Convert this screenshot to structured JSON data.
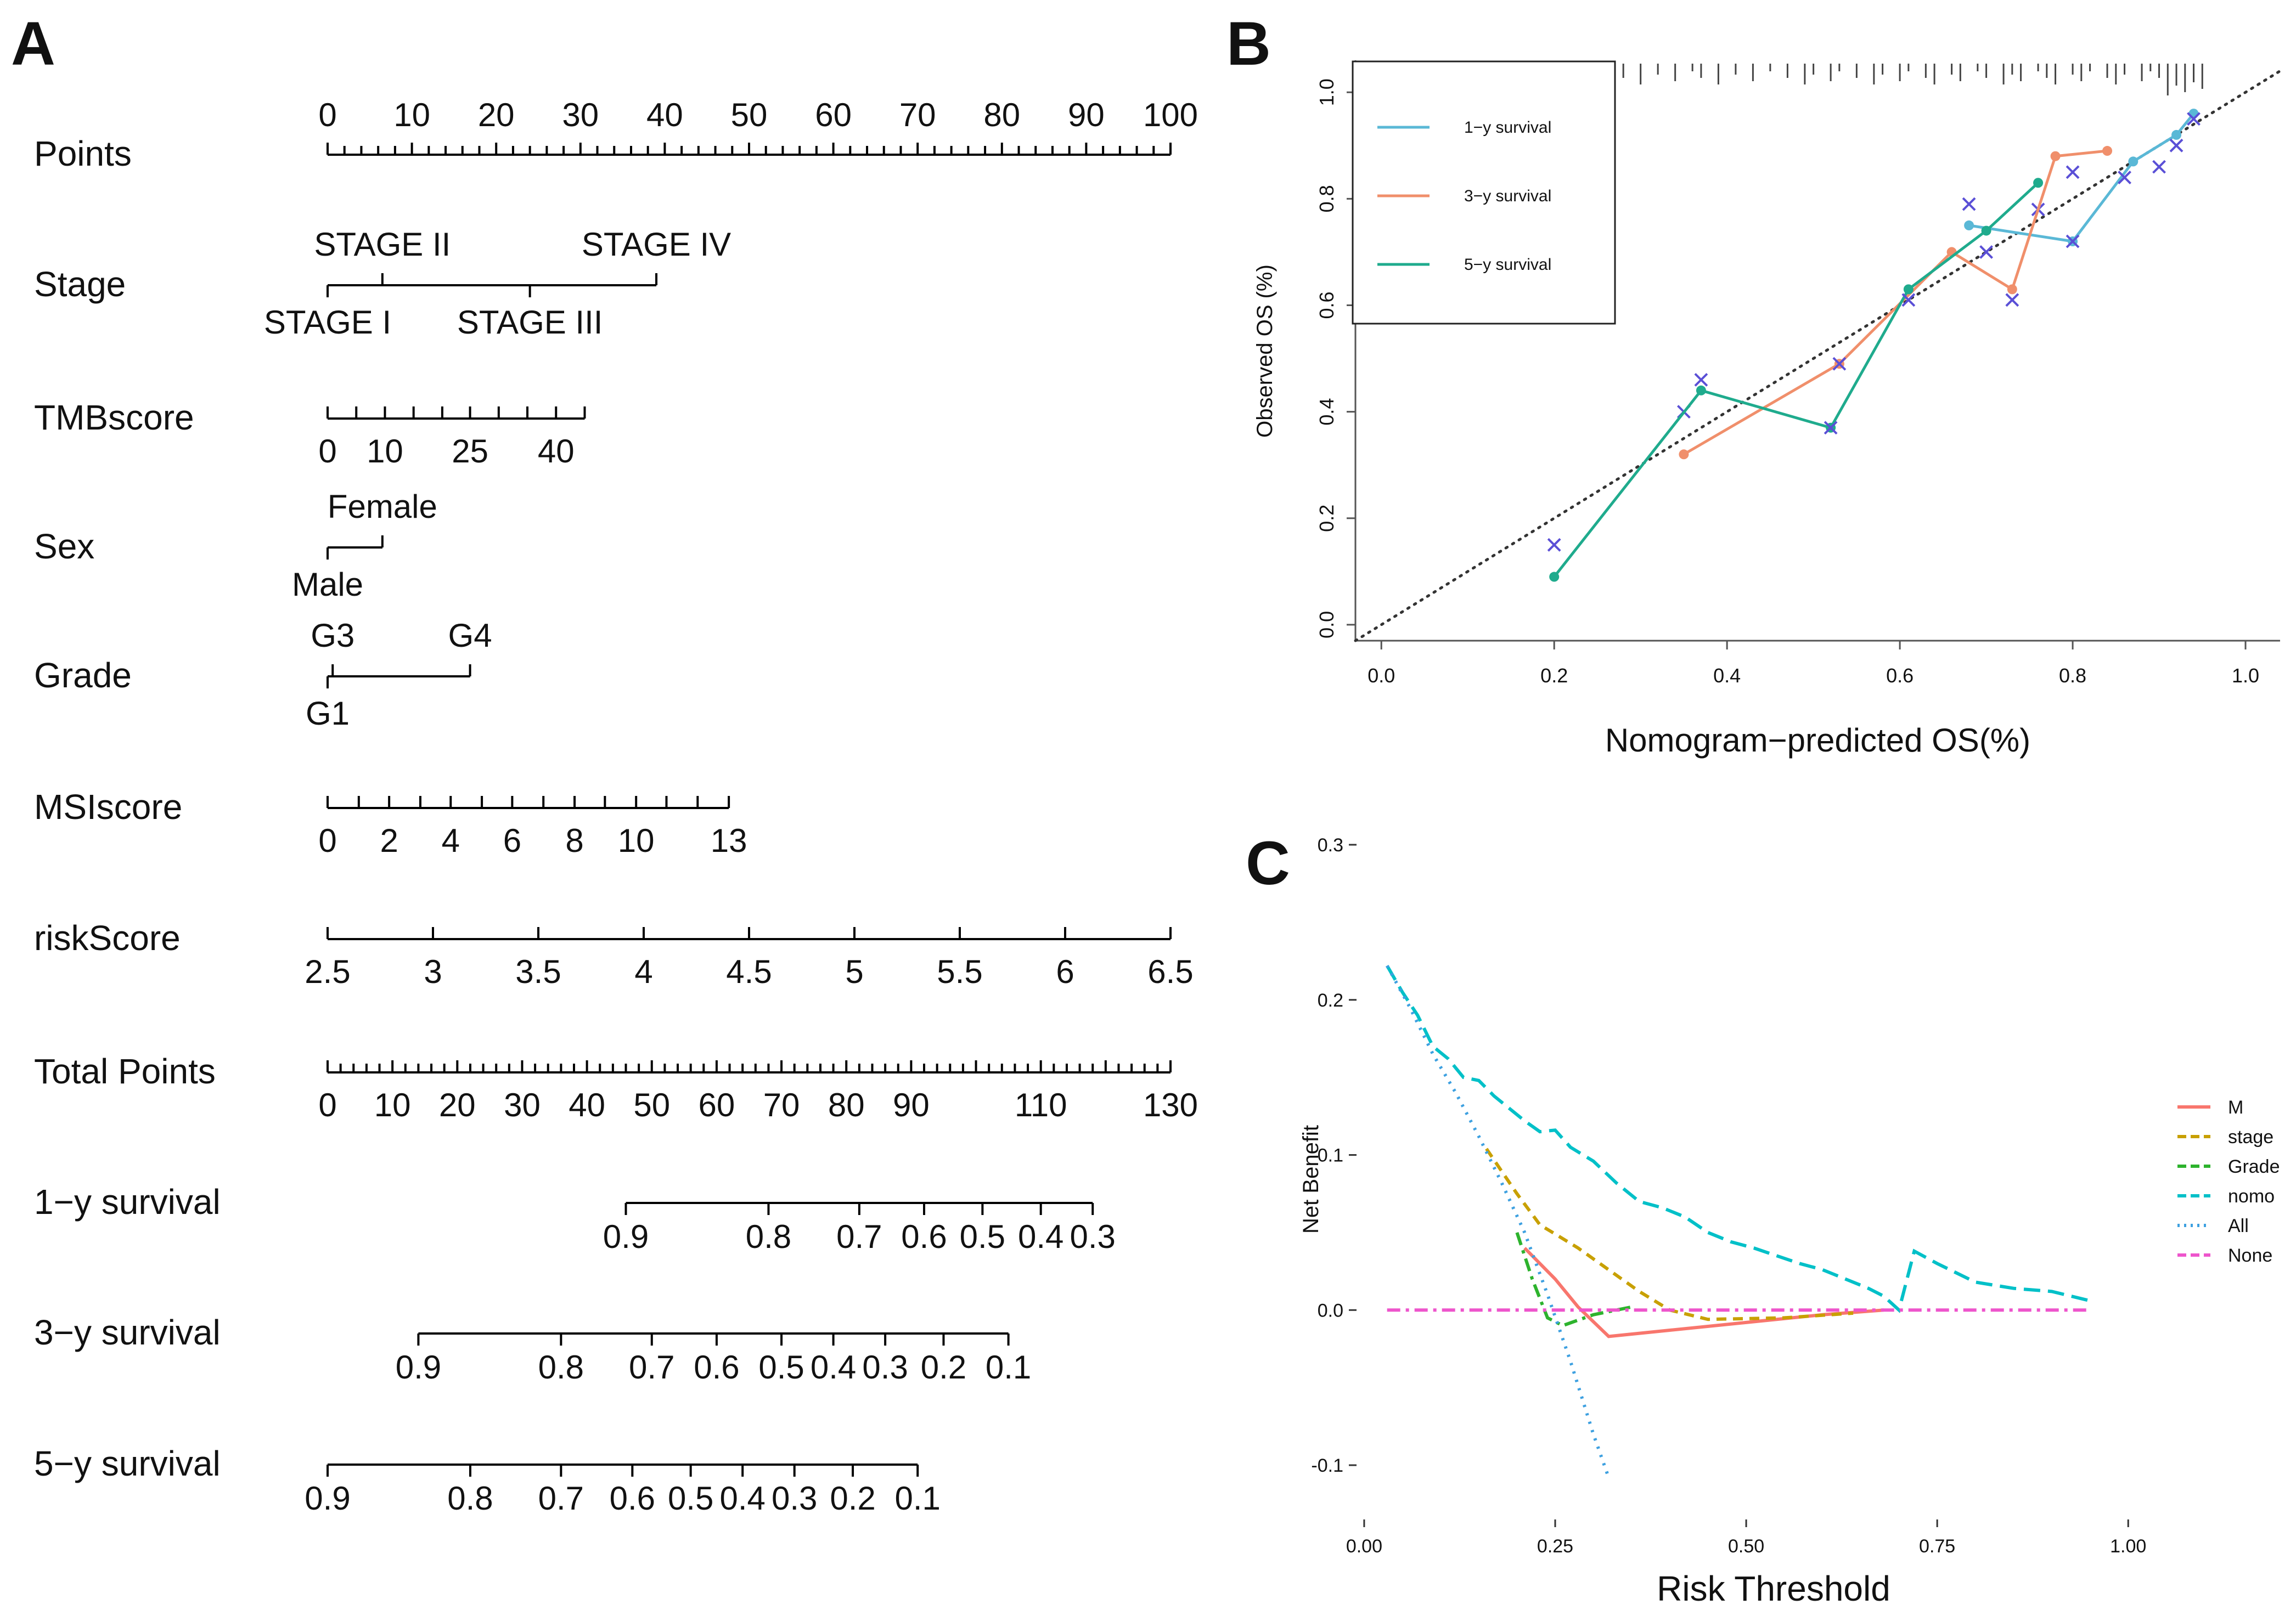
{
  "panels": {
    "a": "A",
    "b": "B",
    "c": "C"
  },
  "chart_data": [
    {
      "type": "nomogram",
      "panel": "A",
      "rows": [
        {
          "key": "points",
          "label": "Points",
          "min": 0,
          "max": 100,
          "minor": 2,
          "ticks": [
            0,
            10,
            20,
            30,
            40,
            50,
            60,
            70,
            80,
            90,
            100
          ],
          "labels_above": true
        },
        {
          "key": "stage",
          "label": "Stage",
          "categorical": true,
          "min": 0,
          "max": 39,
          "levels": [
            {
              "name": "STAGE I",
              "pos": 0,
              "side": "below"
            },
            {
              "name": "STAGE II",
              "pos": 6.5,
              "side": "above"
            },
            {
              "name": "STAGE III",
              "pos": 24,
              "side": "below"
            },
            {
              "name": "STAGE IV",
              "pos": 39,
              "side": "above"
            }
          ]
        },
        {
          "key": "tmb",
          "label": "TMBscore",
          "min": 0,
          "max": 30.5,
          "tick_points": [
            0,
            3.4,
            6.8,
            10.2,
            13.6,
            16.9,
            20.3,
            23.7,
            27.1,
            30.5
          ],
          "labels": [
            {
              "text": "0",
              "pos": 0
            },
            {
              "text": "10",
              "pos": 6.8
            },
            {
              "text": "25",
              "pos": 16.9
            },
            {
              "text": "40",
              "pos": 27.1
            }
          ]
        },
        {
          "key": "sex",
          "label": "Sex",
          "categorical": true,
          "min": 0,
          "max": 6.5,
          "levels": [
            {
              "name": "Male",
              "pos": 0,
              "side": "below"
            },
            {
              "name": "Female",
              "pos": 6.5,
              "side": "above"
            }
          ]
        },
        {
          "key": "grade",
          "label": "Grade",
          "categorical": true,
          "min": 0,
          "max": 16.9,
          "levels": [
            {
              "name": "G1",
              "pos": 0,
              "side": "below"
            },
            {
              "name": "G3",
              "pos": 0.6,
              "side": "above"
            },
            {
              "name": "G4",
              "pos": 16.9,
              "side": "above"
            }
          ]
        },
        {
          "key": "msi",
          "label": "MSIscore",
          "min": 0,
          "max": 47.6,
          "tick_points": [
            0,
            3.7,
            7.3,
            11,
            14.6,
            18.3,
            21.9,
            25.6,
            29.3,
            32.9,
            36.6,
            40.2,
            43.9,
            47.6
          ],
          "labels": [
            {
              "text": "0",
              "pos": 0
            },
            {
              "text": "2",
              "pos": 7.3
            },
            {
              "text": "4",
              "pos": 14.6
            },
            {
              "text": "6",
              "pos": 21.9
            },
            {
              "text": "8",
              "pos": 29.3
            },
            {
              "text": "10",
              "pos": 36.6
            },
            {
              "text": "13",
              "pos": 47.6
            }
          ]
        },
        {
          "key": "risk",
          "label": "riskScore",
          "value_min": 2.5,
          "value_max": 6.5,
          "min": 0,
          "max": 100,
          "ticks": [
            2.5,
            3,
            3.5,
            4,
            4.5,
            5,
            5.5,
            6,
            6.5
          ],
          "tick_labels": [
            "2.5",
            "3",
            "3.5",
            "4",
            "4.5",
            "5",
            "5.5",
            "6",
            "6.5"
          ]
        },
        {
          "key": "total",
          "label": "Total Points",
          "value_min": 0,
          "value_max": 130,
          "min": 0,
          "max": 100,
          "minor": 2,
          "ticks": [
            0,
            10,
            20,
            30,
            40,
            50,
            60,
            70,
            80,
            90,
            110,
            130
          ]
        },
        {
          "key": "surv1",
          "label": "1−y survival",
          "line_total": [
            46,
            118
          ],
          "labels": [
            {
              "text": "0.9",
              "total": 46
            },
            {
              "text": "0.8",
              "total": 68
            },
            {
              "text": "0.7",
              "total": 82
            },
            {
              "text": "0.6",
              "total": 92
            },
            {
              "text": "0.5",
              "total": 101
            },
            {
              "text": "0.4",
              "total": 110
            },
            {
              "text": "0.3",
              "total": 118
            }
          ]
        },
        {
          "key": "surv3",
          "label": "3−y survival",
          "line_total": [
            14,
            105
          ],
          "labels": [
            {
              "text": "0.9",
              "total": 14
            },
            {
              "text": "0.8",
              "total": 36
            },
            {
              "text": "0.7",
              "total": 50
            },
            {
              "text": "0.6",
              "total": 60
            },
            {
              "text": "0.5",
              "total": 70
            },
            {
              "text": "0.4",
              "total": 78
            },
            {
              "text": "0.3",
              "total": 86
            },
            {
              "text": "0.2",
              "total": 95
            },
            {
              "text": "0.1",
              "total": 105
            }
          ]
        },
        {
          "key": "surv5",
          "label": "5−y survival",
          "line_total": [
            0,
            91
          ],
          "labels": [
            {
              "text": "0.9",
              "total": 0
            },
            {
              "text": "0.8",
              "total": 22
            },
            {
              "text": "0.7",
              "total": 36
            },
            {
              "text": "0.6",
              "total": 47
            },
            {
              "text": "0.5",
              "total": 56
            },
            {
              "text": "0.4",
              "total": 64
            },
            {
              "text": "0.3",
              "total": 72
            },
            {
              "text": "0.2",
              "total": 81
            },
            {
              "text": "0.1",
              "total": 91
            }
          ]
        }
      ]
    },
    {
      "type": "line",
      "panel": "B",
      "title": "",
      "xlabel": "Nomogram−predicted OS(%)",
      "ylabel": "Observed OS (%)",
      "xlim": [
        -0.03,
        1.04
      ],
      "ylim": [
        -0.03,
        1.06
      ],
      "xticks": [
        0,
        0.2,
        0.4,
        0.6,
        0.8,
        1
      ],
      "xtick_labels": [
        "0.0",
        "0.2",
        "0.4",
        "0.6",
        "0.8",
        "1.0"
      ],
      "yticks": [
        0,
        0.2,
        0.4,
        0.6,
        0.8,
        1
      ],
      "ytick_labels": [
        "0.0",
        "0.2",
        "0.4",
        "0.6",
        "0.8",
        "1.0"
      ],
      "reference": "diagonal",
      "legend": [
        "1−y survival",
        "3−y survival",
        "5−y survival"
      ],
      "series": [
        {
          "name": "1−y survival",
          "color": "#5ab8d6",
          "points": [
            [
              0.68,
              0.75
            ],
            [
              0.8,
              0.72
            ],
            [
              0.87,
              0.87
            ],
            [
              0.92,
              0.92
            ],
            [
              0.94,
              0.96
            ]
          ],
          "crosses": [
            [
              0.68,
              0.79
            ],
            [
              0.76,
              0.78
            ],
            [
              0.8,
              0.72
            ],
            [
              0.86,
              0.84
            ],
            [
              0.92,
              0.9
            ],
            [
              0.94,
              0.95
            ]
          ]
        },
        {
          "name": "3−y survival",
          "color": "#f08f6b",
          "points": [
            [
              0.35,
              0.32
            ],
            [
              0.53,
              0.49
            ],
            [
              0.66,
              0.7
            ],
            [
              0.73,
              0.63
            ],
            [
              0.78,
              0.88
            ],
            [
              0.84,
              0.89
            ]
          ],
          "crosses": [
            [
              0.35,
              0.4
            ],
            [
              0.53,
              0.49
            ],
            [
              0.73,
              0.61
            ],
            [
              0.8,
              0.85
            ],
            [
              0.9,
              0.86
            ]
          ]
        },
        {
          "name": "5−y survival",
          "color": "#1fab8d",
          "points": [
            [
              0.2,
              0.09
            ],
            [
              0.37,
              0.44
            ],
            [
              0.52,
              0.37
            ],
            [
              0.61,
              0.63
            ],
            [
              0.7,
              0.74
            ],
            [
              0.76,
              0.83
            ]
          ],
          "crosses": [
            [
              0.2,
              0.15
            ],
            [
              0.37,
              0.46
            ],
            [
              0.52,
              0.37
            ],
            [
              0.61,
              0.61
            ],
            [
              0.7,
              0.7
            ]
          ]
        }
      ],
      "rug": [
        0.26,
        0.28,
        0.3,
        0.32,
        0.34,
        0.36,
        0.37,
        0.39,
        0.41,
        0.43,
        0.45,
        0.47,
        0.49,
        0.5,
        0.52,
        0.53,
        0.55,
        0.57,
        0.58,
        0.6,
        0.61,
        0.63,
        0.64,
        0.66,
        0.67,
        0.69,
        0.7,
        0.72,
        0.73,
        0.74,
        0.76,
        0.77,
        0.78,
        0.8,
        0.81,
        0.82,
        0.84,
        0.85,
        0.86,
        0.88,
        0.89,
        0.9,
        0.91,
        0.92,
        0.93,
        0.94,
        0.95
      ]
    },
    {
      "type": "line",
      "panel": "C",
      "title": "",
      "xlabel": "Risk Threshold",
      "ylabel": "Net Benefit",
      "xlim": [
        -0.01,
        1.03
      ],
      "ylim": [
        -0.135,
        0.3
      ],
      "xticks": [
        0,
        0.25,
        0.5,
        0.75,
        1
      ],
      "xtick_labels": [
        "0.00",
        "0.25",
        "0.50",
        "0.75",
        "1.00"
      ],
      "yticks": [
        -0.1,
        0,
        0.1,
        0.2,
        0.3
      ],
      "ytick_labels": [
        "-0.1",
        "0.0",
        "0.1",
        "0.2",
        "0.3"
      ],
      "legend_position": "right",
      "series": [
        {
          "name": "M",
          "color": "#f8766d",
          "dash": "",
          "x": [
            0.21,
            0.25,
            0.28,
            0.32,
            0.4,
            0.5,
            0.6,
            0.68
          ],
          "y": [
            0.04,
            0.02,
            0.002,
            -0.017,
            -0.013,
            -0.008,
            -0.003,
            0.0
          ]
        },
        {
          "name": "stage",
          "color": "#c8a000",
          "dash": "18 12",
          "x": [
            0.16,
            0.2,
            0.23,
            0.28,
            0.32,
            0.36,
            0.4,
            0.45,
            0.55,
            0.64
          ],
          "y": [
            0.104,
            0.075,
            0.055,
            0.04,
            0.026,
            0.012,
            0.0,
            -0.006,
            -0.005,
            -0.002
          ]
        },
        {
          "name": "Grade",
          "color": "#2db32d",
          "dash": "24 10 6 10",
          "x": [
            0.2,
            0.22,
            0.24,
            0.26,
            0.3,
            0.35
          ],
          "y": [
            0.05,
            0.02,
            -0.005,
            -0.01,
            -0.003,
            0.002
          ]
        },
        {
          "name": "nomo",
          "color": "#00c0c8",
          "dash": "30 14",
          "x": [
            0.03,
            0.05,
            0.07,
            0.09,
            0.11,
            0.13,
            0.15,
            0.17,
            0.19,
            0.21,
            0.23,
            0.25,
            0.27,
            0.3,
            0.33,
            0.36,
            0.39,
            0.42,
            0.45,
            0.48,
            0.51,
            0.54,
            0.57,
            0.6,
            0.63,
            0.66,
            0.68,
            0.7,
            0.72,
            0.75,
            0.8,
            0.85,
            0.9,
            0.95
          ],
          "y": [
            0.222,
            0.205,
            0.19,
            0.17,
            0.162,
            0.15,
            0.148,
            0.138,
            0.13,
            0.122,
            0.115,
            0.116,
            0.105,
            0.096,
            0.082,
            0.07,
            0.066,
            0.06,
            0.05,
            0.044,
            0.04,
            0.035,
            0.03,
            0.026,
            0.02,
            0.014,
            0.009,
            0.0,
            0.038,
            0.03,
            0.018,
            0.014,
            0.012,
            0.006
          ]
        },
        {
          "name": "All",
          "color": "#3da0e0",
          "dash": "4 12",
          "x": [
            0.03,
            0.06,
            0.09,
            0.12,
            0.15,
            0.18,
            0.21,
            0.24,
            0.27,
            0.3,
            0.32
          ],
          "y": [
            0.222,
            0.195,
            0.165,
            0.14,
            0.112,
            0.082,
            0.05,
            0.01,
            -0.033,
            -0.08,
            -0.108
          ]
        },
        {
          "name": "None",
          "color": "#ee55cc",
          "dash": "24 10 6 10",
          "x": [
            0.03,
            0.95
          ],
          "y": [
            0,
            0
          ]
        }
      ]
    }
  ]
}
